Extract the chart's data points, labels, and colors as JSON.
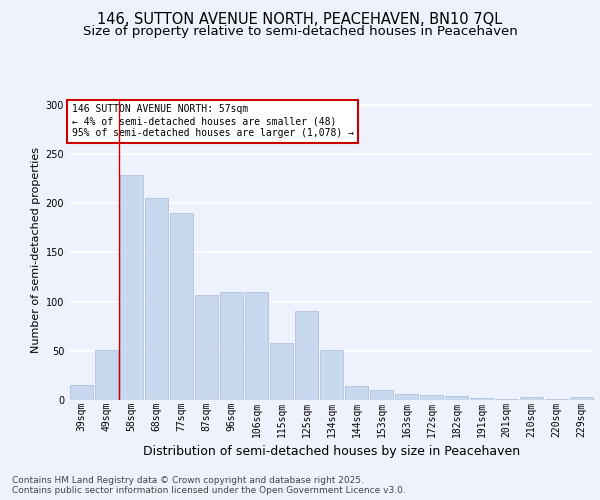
{
  "title": "146, SUTTON AVENUE NORTH, PEACEHAVEN, BN10 7QL",
  "subtitle": "Size of property relative to semi-detached houses in Peacehaven",
  "xlabel": "Distribution of semi-detached houses by size in Peacehaven",
  "ylabel": "Number of semi-detached properties",
  "categories": [
    "39sqm",
    "49sqm",
    "58sqm",
    "68sqm",
    "77sqm",
    "87sqm",
    "96sqm",
    "106sqm",
    "115sqm",
    "125sqm",
    "134sqm",
    "144sqm",
    "153sqm",
    "163sqm",
    "172sqm",
    "182sqm",
    "191sqm",
    "201sqm",
    "210sqm",
    "220sqm",
    "229sqm"
  ],
  "values": [
    15,
    51,
    229,
    205,
    190,
    107,
    110,
    110,
    58,
    90,
    51,
    14,
    10,
    6,
    5,
    4,
    2,
    1,
    3,
    1,
    3
  ],
  "bar_color": "#c8d8ee",
  "bar_edge_color": "#a8bcd8",
  "marker_index": 2,
  "marker_color": "#cc0000",
  "annotation_text": "146 SUTTON AVENUE NORTH: 57sqm\n← 4% of semi-detached houses are smaller (48)\n95% of semi-detached houses are larger (1,078) →",
  "annotation_box_color": "#ffffff",
  "annotation_box_edge": "#cc0000",
  "footnote": "Contains HM Land Registry data © Crown copyright and database right 2025.\nContains public sector information licensed under the Open Government Licence v3.0.",
  "ylim": [
    0,
    305
  ],
  "yticks": [
    0,
    50,
    100,
    150,
    200,
    250,
    300
  ],
  "background_color": "#eef2fc",
  "grid_color": "#ffffff",
  "title_fontsize": 10.5,
  "subtitle_fontsize": 9.5,
  "xlabel_fontsize": 9,
  "ylabel_fontsize": 8,
  "tick_fontsize": 7,
  "footnote_fontsize": 6.5,
  "annotation_fontsize": 7
}
